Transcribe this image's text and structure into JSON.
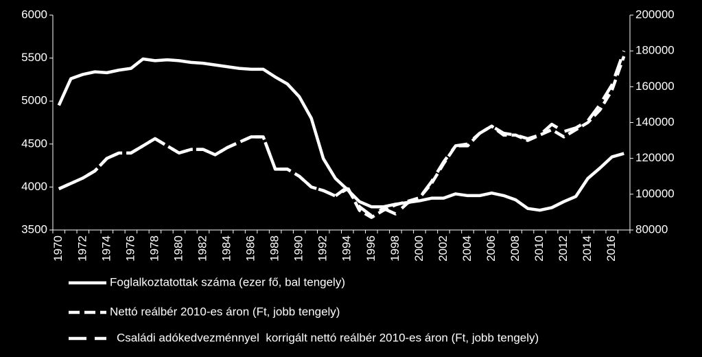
{
  "chart_data": {
    "type": "line",
    "categories": [
      "1970",
      null,
      "1972",
      null,
      "1974",
      null,
      "1976",
      null,
      "1978",
      null,
      "1980",
      null,
      "1982",
      null,
      "1984",
      null,
      "1986",
      null,
      "1988",
      null,
      "1990",
      null,
      "1992",
      null,
      "1994",
      null,
      "1996",
      null,
      "1998",
      null,
      "2000",
      null,
      "2002",
      null,
      "2004",
      null,
      "2006",
      null,
      "2008",
      null,
      "2010",
      null,
      "2012",
      null,
      "2014",
      null,
      "2016",
      null
    ],
    "series": [
      {
        "name": "Foglalkoztatottak száma (ezer fő, bal tengely)",
        "color": "#ffffff",
        "line_style": "solid",
        "axis": "y",
        "values": [
          4950,
          5260,
          5310,
          5340,
          5330,
          5360,
          5380,
          5490,
          5470,
          5480,
          5470,
          5450,
          5440,
          5420,
          5400,
          5380,
          5370,
          5370,
          5280,
          5200,
          5050,
          4800,
          4330,
          4100,
          3970,
          3830,
          3770,
          3770,
          3800,
          3820,
          3840,
          3870,
          3870,
          3920,
          3900,
          3900,
          3930,
          3900,
          3850,
          3750,
          3730,
          3760,
          3830,
          3890,
          4100,
          4220,
          4350,
          4390
        ]
      },
      {
        "name": "Nettó reálbér 2010-es áron (Ft, jobb tengely)",
        "color": "#ffffff",
        "line_style": "dashed",
        "axis": "y2",
        "values": [
          103000,
          106000,
          109000,
          113000,
          120000,
          123000,
          123000,
          127000,
          131000,
          127000,
          123000,
          125000,
          125000,
          122000,
          126000,
          129000,
          132000,
          132000,
          114000,
          114000,
          110000,
          104000,
          102000,
          99000,
          104000,
          91000,
          87000,
          91000,
          94000,
          96000,
          98000,
          106000,
          117000,
          127000,
          127000,
          134000,
          138000,
          133000,
          133000,
          130000,
          133000,
          136000,
          132000,
          136000,
          140000,
          147000,
          158000,
          177000
        ]
      },
      {
        "name": "Családi adókedvezménnyel  korrigált nettó reálbér 2010-es áron (Ft, jobb tengely)",
        "color": "#ffffff",
        "line_style": "long-dashed",
        "axis": "y2",
        "values": [
          103000,
          106000,
          109000,
          113000,
          120000,
          123000,
          123000,
          127000,
          131000,
          127000,
          123000,
          125000,
          125000,
          122000,
          126000,
          129000,
          132000,
          132000,
          114000,
          114000,
          110000,
          104000,
          102000,
          99000,
          103000,
          93000,
          88000,
          92000,
          89000,
          95000,
          98000,
          107000,
          118000,
          127000,
          128000,
          134000,
          138000,
          134000,
          133000,
          131000,
          133000,
          139000,
          135000,
          137000,
          141000,
          150000,
          161000,
          180000
        ]
      }
    ],
    "ylim": [
      3500,
      6000
    ],
    "yticks": [
      3500,
      4000,
      4500,
      5000,
      5500,
      6000
    ],
    "y2lim": [
      80000,
      200000
    ],
    "y2ticks": [
      80000,
      100000,
      120000,
      140000,
      160000,
      180000,
      200000
    ],
    "legend": "bottom"
  }
}
